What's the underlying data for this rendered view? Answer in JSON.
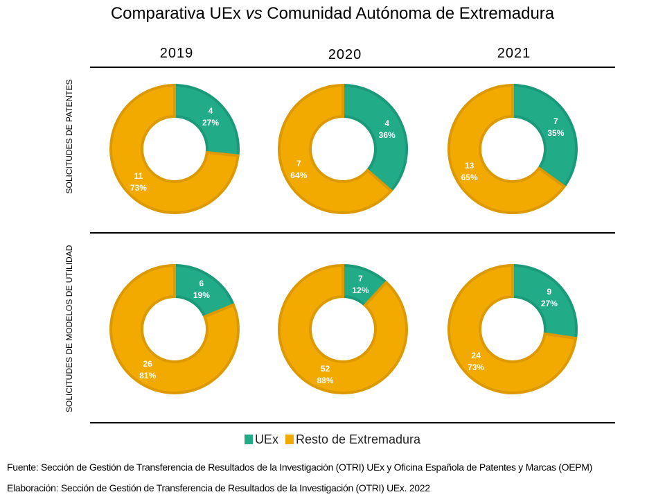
{
  "title_pre": "Comparativa UEx ",
  "title_vs": "vs",
  "title_post": " Comunidad Autónoma de Extremadura",
  "colors": {
    "uex": "#21ab87",
    "uex_border": "#1a9a78",
    "resto": "#f2a900",
    "resto_border": "#dc9a00"
  },
  "chart_data": {
    "type": "donut",
    "years": [
      "2019",
      "2020",
      "2021"
    ],
    "rows": [
      "SOLICITUDES DE PATENTES",
      "SOLICITUDES DE MODELOS DE UTILIDAD"
    ],
    "legend": [
      "UEx",
      "Resto de Extremadura"
    ],
    "legend_position": "bottom",
    "data": [
      [
        {
          "uex": 4,
          "uex_pct": "27%",
          "resto": 11,
          "resto_pct": "73%"
        },
        {
          "uex": 4,
          "uex_pct": "36%",
          "resto": 7,
          "resto_pct": "64%"
        },
        {
          "uex": 7,
          "uex_pct": "35%",
          "resto": 13,
          "resto_pct": "65%"
        }
      ],
      [
        {
          "uex": 6,
          "uex_pct": "19%",
          "resto": 26,
          "resto_pct": "81%"
        },
        {
          "uex": 7,
          "uex_pct": "12%",
          "resto": 52,
          "resto_pct": "88%"
        },
        {
          "uex": 9,
          "uex_pct": "27%",
          "resto": 24,
          "resto_pct": "73%"
        }
      ]
    ]
  },
  "fuente": "Fuente: Sección de Gestión de Transferencia de Resultados de la Investigación (OTRI) UEx y Oficina Española de Patentes y Marcas (OEPM)",
  "elaboracion": "Elaboración: Sección de Gestión de Transferencia de Resultados de la Investigación (OTRI) UEx. 2022"
}
